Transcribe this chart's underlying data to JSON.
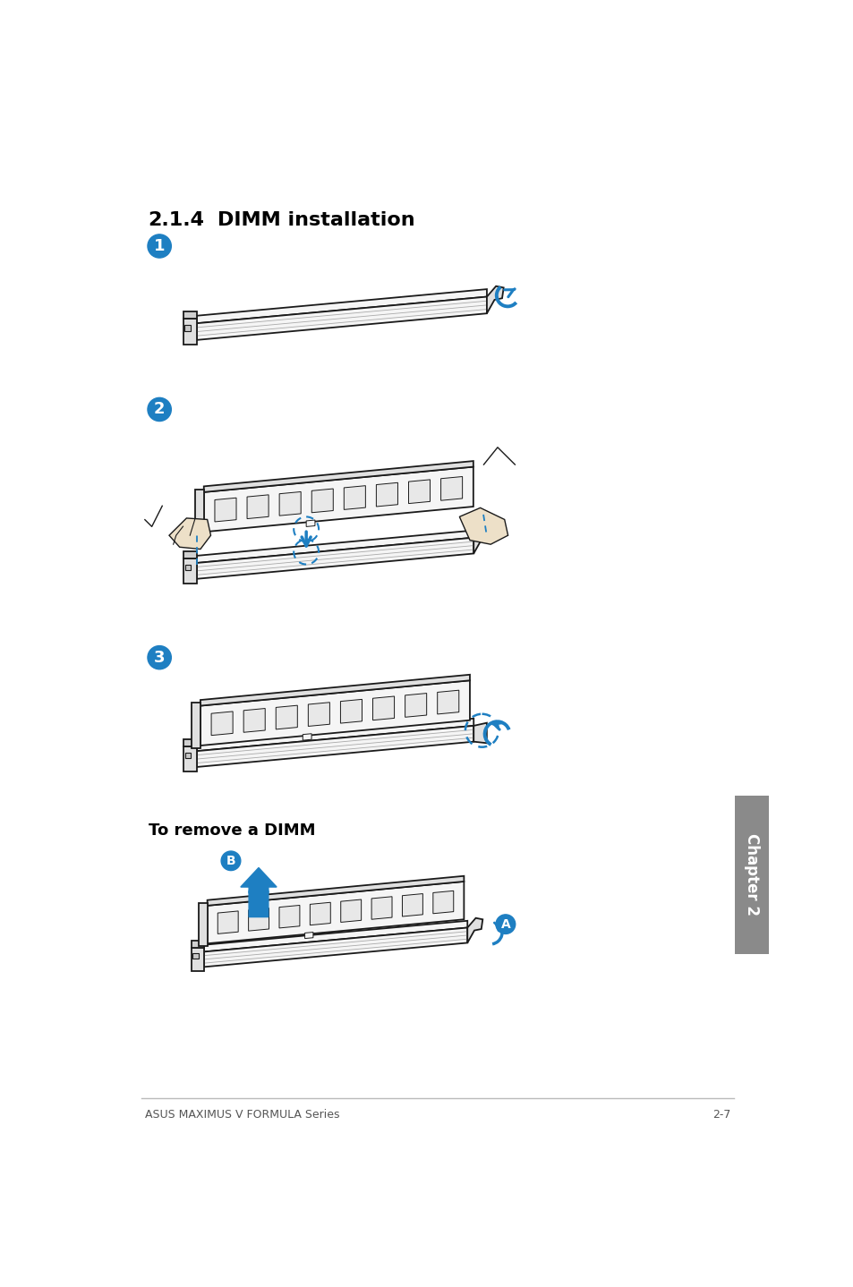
{
  "title_num": "2.1.4",
  "title_text": "DIMM installation",
  "footer_left": "ASUS MAXIMUS V FORMULA Series",
  "footer_right": "2-7",
  "to_remove_label": "To remove a DIMM",
  "chapter_label": "Chapter 2",
  "bg_color": "#ffffff",
  "text_color": "#000000",
  "blue_color": "#1e7fc2",
  "gray_sidebar": "#8a8a8a",
  "step_circle_color": "#1e7fc2",
  "step_text_color": "#ffffff",
  "line_color": "#1a1a1a",
  "slot_fill": "#f5f5f5",
  "slot_side_fill": "#e0e0e0",
  "chip_fill": "#e8e8e8",
  "chip_edge": "#333333"
}
